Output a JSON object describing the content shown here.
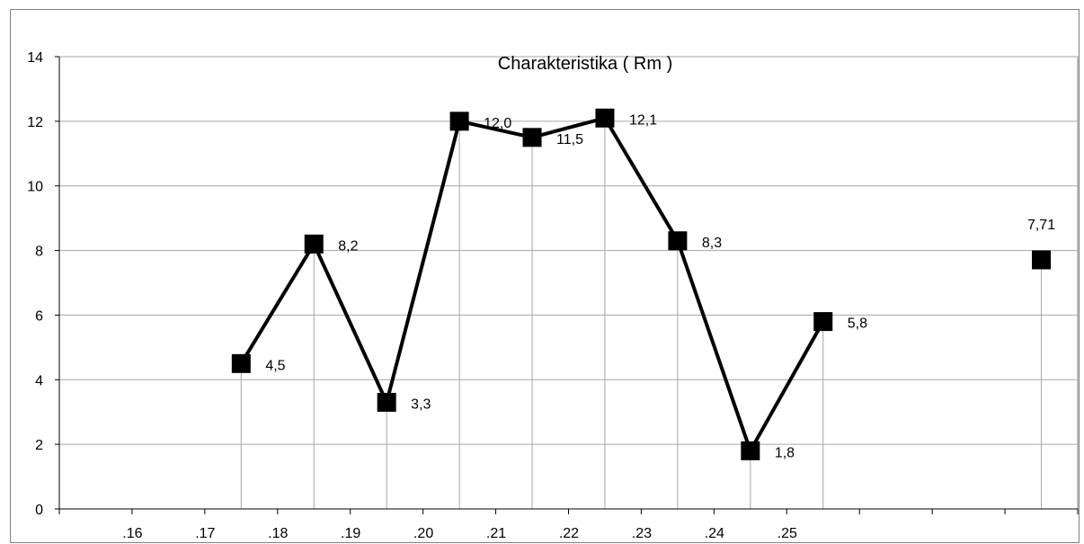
{
  "chart_data": {
    "type": "line",
    "title": "Charakteristika ( Rm )",
    "xlabel": "",
    "ylabel": "",
    "ylim": [
      0,
      14
    ],
    "yticks": [
      0,
      2,
      4,
      6,
      8,
      10,
      12,
      14
    ],
    "grid": true,
    "legend": "none",
    "categories": [
      "",
      ".16",
      ".17",
      ".18",
      ".19",
      ".20",
      ".21",
      ".22",
      ".23",
      ".24",
      ".25",
      "",
      "",
      ""
    ],
    "series": [
      {
        "values": [
          null,
          null,
          4.5,
          8.2,
          3.3,
          12.0,
          11.5,
          12.1,
          8.3,
          1.8,
          5.8,
          null,
          null,
          null
        ],
        "labels": [
          null,
          null,
          "4,5",
          "8,2",
          "3,3",
          "12,0",
          "11,5",
          "12,1",
          "8,3",
          "1,8",
          "5,8",
          null,
          null,
          null
        ],
        "color": "#000000",
        "marker": "square"
      },
      {
        "values": [
          null,
          null,
          null,
          null,
          null,
          null,
          null,
          null,
          null,
          null,
          null,
          null,
          null,
          7.71
        ],
        "labels": [
          null,
          null,
          null,
          null,
          null,
          null,
          null,
          null,
          null,
          null,
          null,
          null,
          null,
          "7,71"
        ],
        "color": "#000000",
        "marker": "square",
        "line": false
      }
    ]
  },
  "colors": {
    "gridline": "#a6a6a6",
    "axis": "#000000",
    "series": "#000000"
  }
}
